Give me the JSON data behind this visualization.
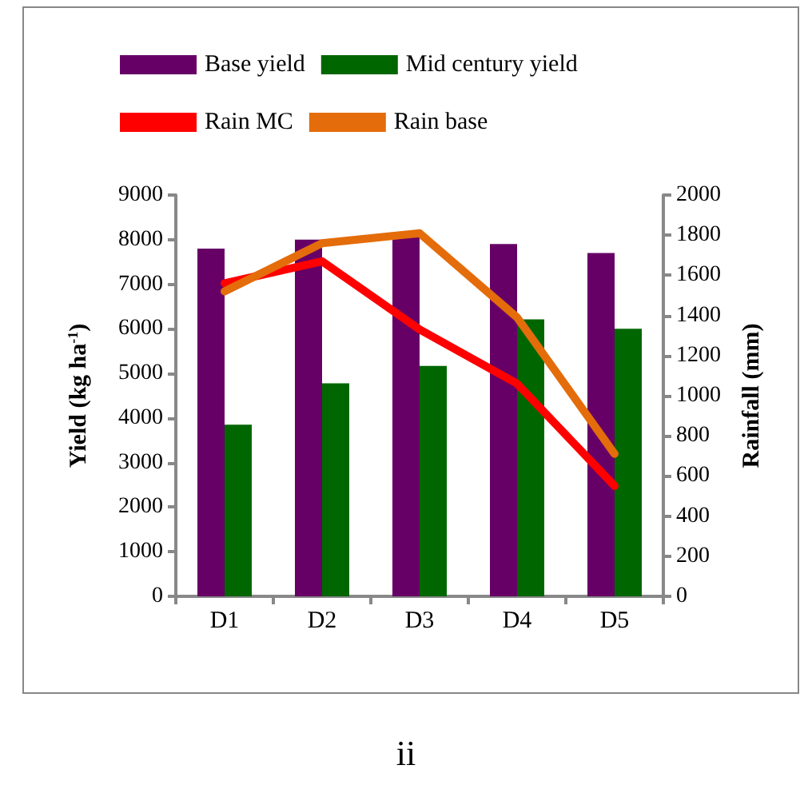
{
  "chart_data": {
    "type": "bar",
    "categories": [
      "D1",
      "D2",
      "D3",
      "D4",
      "D5"
    ],
    "ylabel": "Yield (kg ha$^{-1}$)",
    "y2label": "Rainfall (mm)",
    "ylim": [
      0,
      9000
    ],
    "yticks": [
      0,
      1000,
      2000,
      3000,
      4000,
      5000,
      6000,
      7000,
      8000,
      9000
    ],
    "y2lim": [
      0,
      2000
    ],
    "y2ticks": [
      0,
      200,
      400,
      600,
      800,
      1000,
      1200,
      1400,
      1600,
      1800,
      2000
    ],
    "legend": "top",
    "grid": false,
    "series": [
      {
        "name": "Base yield",
        "color": "#660066",
        "values": [
          7800,
          8000,
          8100,
          7900,
          7700
        ]
      },
      {
        "name": "Mid century yield",
        "color": "#006600",
        "values": [
          3850,
          4780,
          5170,
          6210,
          6000
        ]
      },
      {
        "name": "Rain MC",
        "type": "line",
        "axis": "y2",
        "color": "#ff0000",
        "values": [
          1560,
          1670,
          1330,
          1060,
          550
        ]
      },
      {
        "name": "Rain base",
        "type": "line",
        "axis": "y2",
        "color": "#e46c0a",
        "values": [
          1520,
          1760,
          1810,
          1390,
          710
        ]
      }
    ],
    "annotations": [
      "ii"
    ]
  }
}
